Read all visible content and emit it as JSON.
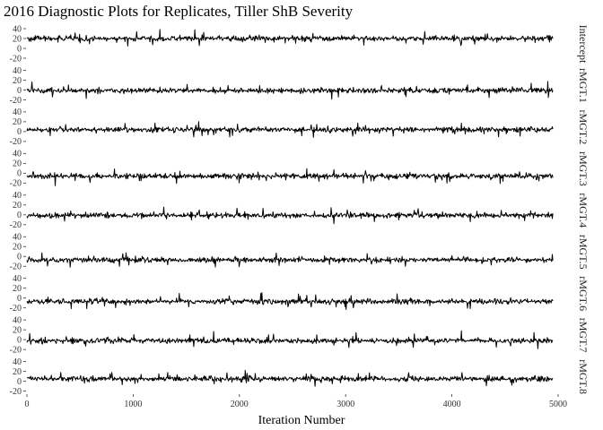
{
  "chart_data": {
    "type": "line",
    "title": "2016 Diagnostic Plots for Replicates, Tiller ShB Severity",
    "xlabel": "Iteration Number",
    "ylabel": "",
    "xlim": [
      0,
      5000
    ],
    "x_ticks": [
      "0",
      "1000",
      "2000",
      "3000",
      "4000",
      "5000"
    ],
    "y_ticks": [
      "40",
      "20",
      "0",
      "-20"
    ],
    "ylim": [
      -25,
      45
    ],
    "n_iterations": 4950,
    "facet_layout": "vertical, strip labels on right",
    "panels": [
      {
        "strip": "Intercept",
        "mean": 20
      },
      {
        "strip": "rMGT.1",
        "mean": -1
      },
      {
        "strip": "rMGT.2",
        "mean": 4
      },
      {
        "strip": "rMGT.3",
        "mean": -6
      },
      {
        "strip": "rMGT.4",
        "mean": -1
      },
      {
        "strip": "rMGT.5",
        "mean": -7
      },
      {
        "strip": "rMGT.6",
        "mean": -7
      },
      {
        "strip": "rMGT.7",
        "mean": -2
      },
      {
        "strip": "rMGT.8",
        "mean": 5
      }
    ],
    "grid": false,
    "line_color": "#000000"
  }
}
